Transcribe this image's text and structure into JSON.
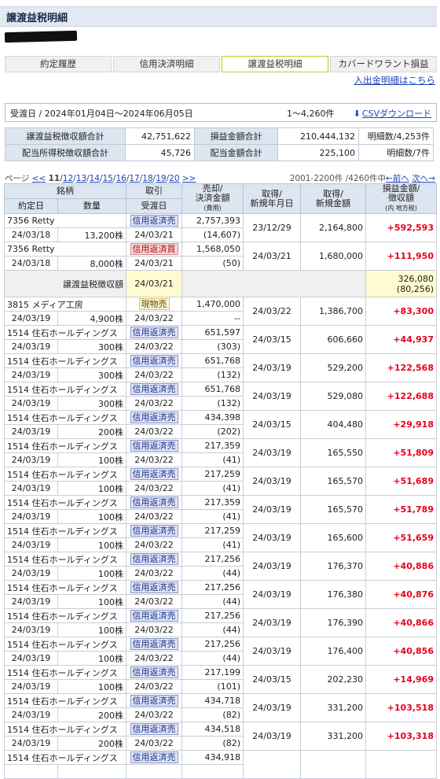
{
  "page": {
    "title": "譲渡益税明細"
  },
  "tabs": [
    "約定履歴",
    "信用決済明細",
    "譲渡益税明細",
    "カバードワラント損益"
  ],
  "active_tab": 2,
  "links": {
    "deposit_withdraw": "入出金明細はこちら",
    "csv": "CSVダウンロード"
  },
  "period": {
    "text": "受渡日 / 2024年01月04日〜2024年06月05日",
    "count": "1〜4,260件"
  },
  "summary": {
    "rows": [
      [
        "譲渡益税徴収額合計",
        "42,751,622",
        "損益金額合計",
        "210,444,132",
        "明細数/4,253件"
      ],
      [
        "配当所得税徴収額合計",
        "45,726",
        "配当金額合計",
        "225,100",
        "明細数/7件"
      ]
    ]
  },
  "pager": {
    "label": "ページ",
    "prev": "<<",
    "current": "11",
    "pages": [
      "12",
      "13",
      "14",
      "15",
      "16",
      "17",
      "18",
      "19",
      "20"
    ],
    "next": ">>",
    "range": "2001-2200件 /4260件中",
    "prev_link": "←前へ",
    "next_link": "次へ→"
  },
  "headers": {
    "security": "銘柄",
    "type": "取引",
    "sale": "売却/",
    "sale2": "決済金額",
    "sale_sub": "(費用)",
    "acq_date": "取得/",
    "acq_date2": "新規年月日",
    "acq_amt": "取得/",
    "acq_amt2": "新規金額",
    "pl": "損益金額/",
    "pl2": "徴収額",
    "pl_sub": "(内 地方税)",
    "trade_date": "約定日",
    "qty": "数量",
    "settle_date": "受渡日"
  },
  "tax_row": {
    "label": "譲渡益税徴収額",
    "date": "24/03/21",
    "amount": "326,080",
    "local": "(80,256)"
  },
  "records": [
    {
      "name": "7356 Retty",
      "type": "信用返済売",
      "kind": "sell",
      "sale": "2,757,393",
      "fee": "(14,607)",
      "acq_date": "23/12/29",
      "acq_amt": "2,164,800",
      "pl": "+592,593",
      "trade_date": "24/03/18",
      "qty": "13,200株",
      "settle": "24/03/21"
    },
    {
      "name": "7356 Retty",
      "type": "信用返済買",
      "kind": "buy",
      "sale": "1,568,050",
      "fee": "(50)",
      "acq_date": "24/03/21",
      "acq_amt": "1,680,000",
      "pl": "+111,950",
      "trade_date": "24/03/18",
      "qty": "8,000株",
      "settle": "24/03/21"
    },
    {
      "name": "3815 メディア工房",
      "type": "現物売",
      "kind": "spot",
      "sale": "1,470,000",
      "fee": "--",
      "acq_date": "24/03/22",
      "acq_amt": "1,386,700",
      "pl": "+83,300",
      "trade_date": "24/03/19",
      "qty": "4,900株",
      "settle": "24/03/22"
    },
    {
      "name": "1514 住石ホールディングス",
      "type": "信用返済売",
      "kind": "sell",
      "sale": "651,597",
      "fee": "(303)",
      "acq_date": "24/03/15",
      "acq_amt": "606,660",
      "pl": "+44,937",
      "trade_date": "24/03/19",
      "qty": "300株",
      "settle": "24/03/22"
    },
    {
      "name": "1514 住石ホールディングス",
      "type": "信用返済売",
      "kind": "sell",
      "sale": "651,768",
      "fee": "(132)",
      "acq_date": "24/03/19",
      "acq_amt": "529,200",
      "pl": "+122,568",
      "trade_date": "24/03/19",
      "qty": "300株",
      "settle": "24/03/22"
    },
    {
      "name": "1514 住石ホールディングス",
      "type": "信用返済売",
      "kind": "sell",
      "sale": "651,768",
      "fee": "(132)",
      "acq_date": "24/03/19",
      "acq_amt": "529,080",
      "pl": "+122,688",
      "trade_date": "24/03/19",
      "qty": "300株",
      "settle": "24/03/22"
    },
    {
      "name": "1514 住石ホールディングス",
      "type": "信用返済売",
      "kind": "sell",
      "sale": "434,398",
      "fee": "(202)",
      "acq_date": "24/03/15",
      "acq_amt": "404,480",
      "pl": "+29,918",
      "trade_date": "24/03/19",
      "qty": "200株",
      "settle": "24/03/22"
    },
    {
      "name": "1514 住石ホールディングス",
      "type": "信用返済売",
      "kind": "sell",
      "sale": "217,359",
      "fee": "(41)",
      "acq_date": "24/03/19",
      "acq_amt": "165,550",
      "pl": "+51,809",
      "trade_date": "24/03/19",
      "qty": "100株",
      "settle": "24/03/22"
    },
    {
      "name": "1514 住石ホールディングス",
      "type": "信用返済売",
      "kind": "sell",
      "sale": "217,259",
      "fee": "(41)",
      "acq_date": "24/03/19",
      "acq_amt": "165,570",
      "pl": "+51,689",
      "trade_date": "24/03/19",
      "qty": "100株",
      "settle": "24/03/22"
    },
    {
      "name": "1514 住石ホールディングス",
      "type": "信用返済売",
      "kind": "sell",
      "sale": "217,359",
      "fee": "(41)",
      "acq_date": "24/03/19",
      "acq_amt": "165,570",
      "pl": "+51,789",
      "trade_date": "24/03/19",
      "qty": "100株",
      "settle": "24/03/22"
    },
    {
      "name": "1514 住石ホールディングス",
      "type": "信用返済売",
      "kind": "sell",
      "sale": "217,259",
      "fee": "(41)",
      "acq_date": "24/03/19",
      "acq_amt": "165,600",
      "pl": "+51,659",
      "trade_date": "24/03/19",
      "qty": "100株",
      "settle": "24/03/22"
    },
    {
      "name": "1514 住石ホールディングス",
      "type": "信用返済売",
      "kind": "sell",
      "sale": "217,256",
      "fee": "(44)",
      "acq_date": "24/03/19",
      "acq_amt": "176,370",
      "pl": "+40,886",
      "trade_date": "24/03/19",
      "qty": "100株",
      "settle": "24/03/22"
    },
    {
      "name": "1514 住石ホールディングス",
      "type": "信用返済売",
      "kind": "sell",
      "sale": "217,256",
      "fee": "(44)",
      "acq_date": "24/03/19",
      "acq_amt": "176,380",
      "pl": "+40,876",
      "trade_date": "24/03/19",
      "qty": "100株",
      "settle": "24/03/22"
    },
    {
      "name": "1514 住石ホールディングス",
      "type": "信用返済売",
      "kind": "sell",
      "sale": "217,256",
      "fee": "(44)",
      "acq_date": "24/03/19",
      "acq_amt": "176,390",
      "pl": "+40,866",
      "trade_date": "24/03/19",
      "qty": "100株",
      "settle": "24/03/22"
    },
    {
      "name": "1514 住石ホールディングス",
      "type": "信用返済売",
      "kind": "sell",
      "sale": "217,256",
      "fee": "(44)",
      "acq_date": "24/03/19",
      "acq_amt": "176,400",
      "pl": "+40,856",
      "trade_date": "24/03/19",
      "qty": "100株",
      "settle": "24/03/22"
    },
    {
      "name": "1514 住石ホールディングス",
      "type": "信用返済売",
      "kind": "sell",
      "sale": "217,199",
      "fee": "(101)",
      "acq_date": "24/03/15",
      "acq_amt": "202,230",
      "pl": "+14,969",
      "trade_date": "24/03/19",
      "qty": "100株",
      "settle": "24/03/22"
    },
    {
      "name": "1514 住石ホールディングス",
      "type": "信用返済売",
      "kind": "sell",
      "sale": "434,718",
      "fee": "(82)",
      "acq_date": "24/03/19",
      "acq_amt": "331,200",
      "pl": "+103,518",
      "trade_date": "24/03/19",
      "qty": "200株",
      "settle": "24/03/22"
    },
    {
      "name": "1514 住石ホールディングス",
      "type": "信用返済売",
      "kind": "sell",
      "sale": "434,518",
      "fee": "(82)",
      "acq_date": "24/03/19",
      "acq_amt": "331,200",
      "pl": "+103,318",
      "trade_date": "24/03/19",
      "qty": "200株",
      "settle": "24/03/22"
    },
    {
      "name": "1514 住石ホールディングス",
      "type": "信用返済売",
      "kind": "sell",
      "sale": "434,918",
      "fee": "",
      "acq_date": "",
      "acq_amt": "",
      "pl": "",
      "trade_date": "",
      "qty": "",
      "settle": ""
    }
  ]
}
